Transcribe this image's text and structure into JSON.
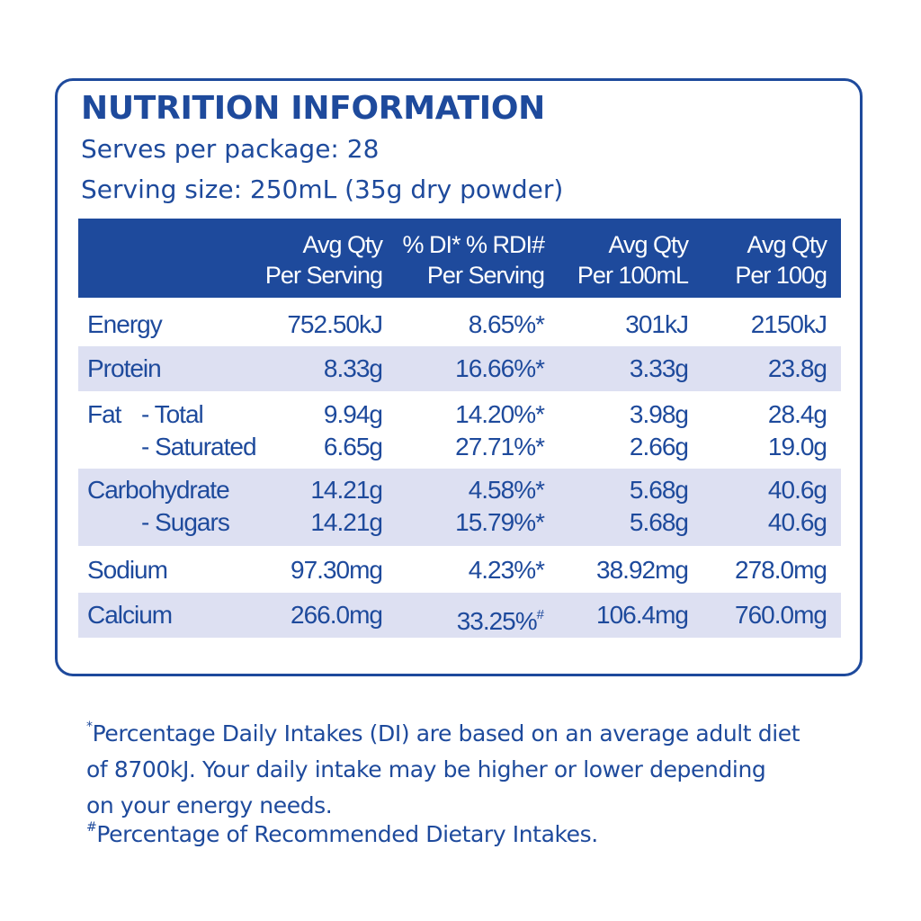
{
  "title": "NUTRITION INFORMATION",
  "serves_per_package": "Serves per package: 28",
  "serving_size": "Serving size: 250mL (35g dry powder)",
  "colors": {
    "primary": "#1e4a9c",
    "shade": "#dde0f2",
    "background": "#ffffff"
  },
  "table": {
    "headers": [
      {
        "line1": "Avg Qty",
        "line2": "Per Serving"
      },
      {
        "line1": "% DI* % RDI#",
        "line2": "Per Serving"
      },
      {
        "line1": "Avg Qty",
        "line2": "Per 100mL"
      },
      {
        "line1": "Avg Qty",
        "line2": "Per 100g"
      }
    ],
    "rows": [
      {
        "label": "Energy",
        "values": [
          "752.50kJ",
          "8.65%*",
          "301kJ",
          "2150kJ"
        ],
        "shaded": false
      },
      {
        "label": "Protein",
        "values": [
          "8.33g",
          "16.66%*",
          "3.33g",
          "23.8g"
        ],
        "shaded": true
      },
      {
        "label": "Fat",
        "sublabel": "- Total",
        "values": [
          "9.94g",
          "14.20%*",
          "3.98g",
          "28.4g"
        ],
        "shaded": false
      },
      {
        "label": "- Saturated",
        "values": [
          "6.65g",
          "27.71%*",
          "2.66g",
          "19.0g"
        ],
        "shaded": false
      },
      {
        "label": "Carbohydrate",
        "values": [
          "14.21g",
          "4.58%*",
          "5.68g",
          "40.6g"
        ],
        "shaded": true
      },
      {
        "label": "- Sugars",
        "values": [
          "14.21g",
          "15.79%*",
          "5.68g",
          "40.6g"
        ],
        "shaded": true
      },
      {
        "label": "Sodium",
        "values": [
          "97.30mg",
          "4.23%*",
          "38.92mg",
          "278.0mg"
        ],
        "shaded": false
      },
      {
        "label": "Calcium",
        "values": [
          "266.0mg",
          "33.25%",
          "106.4mg",
          "760.0mg"
        ],
        "value_marks": [
          "",
          "#",
          "",
          ""
        ],
        "shaded": true
      }
    ]
  },
  "footnotes": {
    "di_mark": "*",
    "di_text_line1": "Percentage Daily Intakes (DI) are based on an average adult diet",
    "di_text_line2": "of 8700kJ. Your daily intake may be higher or lower depending",
    "di_text_line3": "on your energy needs.",
    "rdi_mark": "#",
    "rdi_text": "Percentage of Recommended Dietary Intakes."
  }
}
